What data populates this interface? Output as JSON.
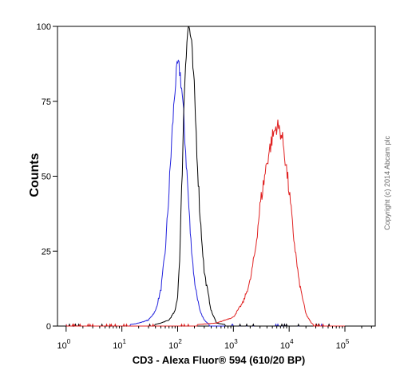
{
  "chart_data": {
    "type": "line",
    "xlabel": "CD3 - Alexa Fluor® 594 (610/20 BP)",
    "ylabel": "Counts",
    "xscale": "log",
    "xlim": [
      0.7,
      350000
    ],
    "ylim": [
      0,
      100
    ],
    "x_ticks": [
      {
        "base": "10",
        "exp": "0",
        "value": 1
      },
      {
        "base": "10",
        "exp": "1",
        "value": 10
      },
      {
        "base": "10",
        "exp": "2",
        "value": 100
      },
      {
        "base": "10",
        "exp": "3",
        "value": 1000
      },
      {
        "base": "10",
        "exp": "4",
        "value": 10000
      },
      {
        "base": "10",
        "exp": "5",
        "value": 100000
      }
    ],
    "y_ticks": [
      {
        "label": "0",
        "value": 0
      },
      {
        "label": "25",
        "value": 25
      },
      {
        "label": "50",
        "value": 50
      },
      {
        "label": "75",
        "value": 75
      },
      {
        "label": "100",
        "value": 100
      }
    ],
    "grid": false,
    "legend": "none",
    "series": [
      {
        "color": "#2222dd",
        "x": [
          1,
          3,
          10,
          20,
          30,
          40,
          50,
          60,
          70,
          80,
          90,
          100,
          110,
          120,
          130,
          150,
          170,
          200,
          250,
          300,
          400,
          1000,
          100000
        ],
        "y": [
          0,
          0,
          0,
          1,
          2,
          5,
          12,
          25,
          45,
          65,
          80,
          87,
          85,
          78,
          68,
          48,
          30,
          15,
          5,
          2,
          0,
          0,
          0
        ]
      },
      {
        "color": "#000000",
        "x": [
          1,
          10,
          30,
          50,
          70,
          90,
          100,
          110,
          120,
          130,
          140,
          150,
          160,
          170,
          180,
          200,
          220,
          250,
          300,
          400,
          500,
          1000,
          100000
        ],
        "y": [
          0,
          0,
          0,
          1,
          2,
          5,
          10,
          25,
          50,
          75,
          90,
          98,
          100,
          97,
          92,
          78,
          60,
          38,
          18,
          5,
          1,
          0,
          0
        ]
      },
      {
        "color": "#e02020",
        "x": [
          1,
          100,
          500,
          1000,
          1500,
          2000,
          2500,
          3000,
          3500,
          4000,
          5000,
          6000,
          7000,
          8000,
          9000,
          10000,
          12000,
          15000,
          20000,
          25000,
          30000,
          100000
        ],
        "y": [
          0,
          0,
          1,
          3,
          8,
          15,
          26,
          40,
          48,
          55,
          63,
          67,
          65,
          60,
          52,
          45,
          30,
          15,
          4,
          1,
          0,
          0
        ]
      }
    ]
  },
  "copyright": "Copyright (c) 2014 Abcam plc"
}
